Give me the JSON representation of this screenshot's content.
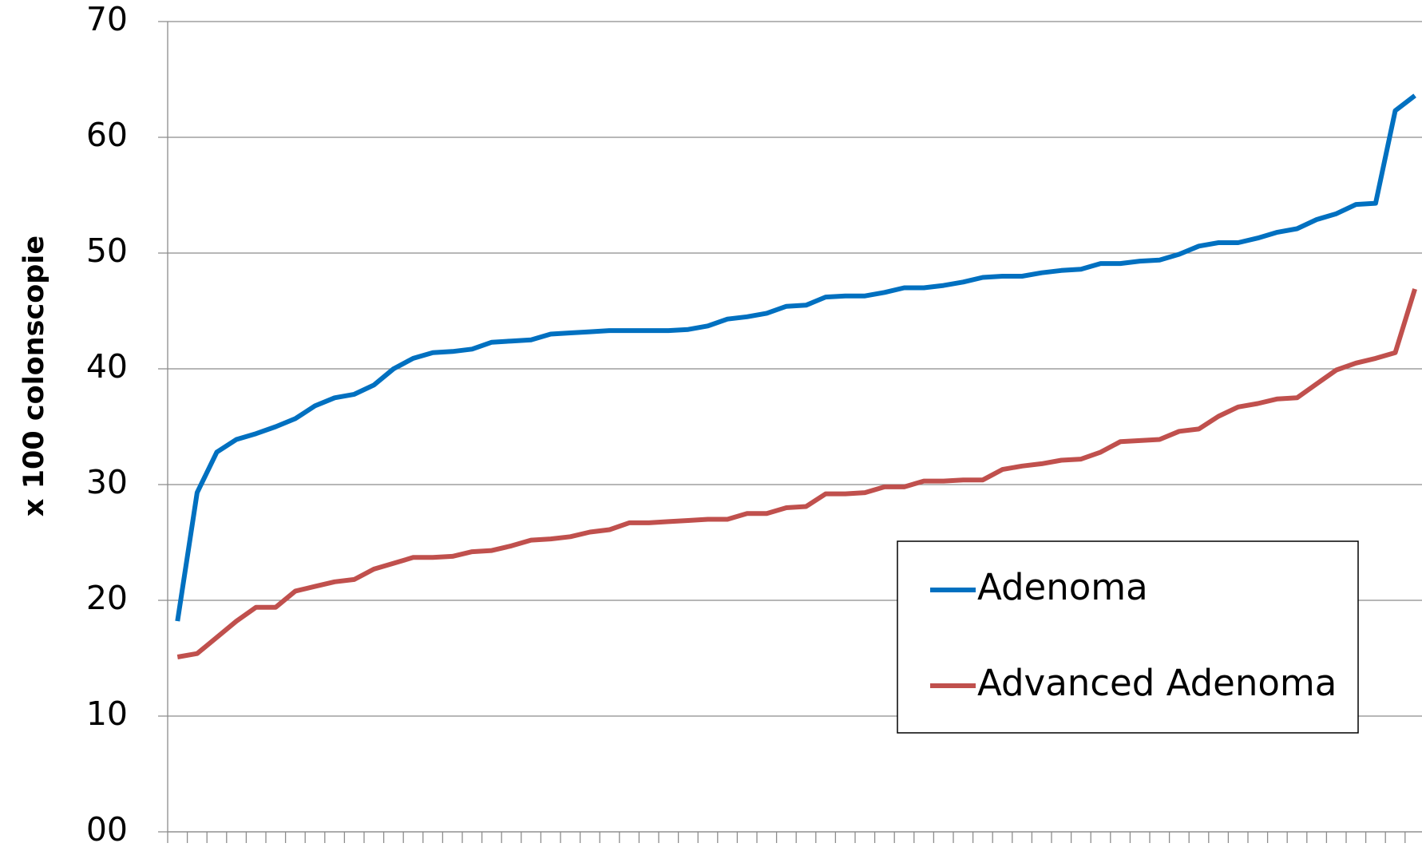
{
  "chart_data": {
    "type": "line",
    "y_label": "x 100 colonscopie",
    "categories": [
      null,
      null,
      null,
      null,
      null,
      null,
      null,
      null,
      null,
      null,
      null,
      null,
      null,
      null,
      null,
      null,
      null,
      null,
      null,
      null,
      null,
      null,
      null,
      null,
      null,
      null,
      null,
      null,
      null,
      null,
      null,
      null,
      null,
      null,
      null,
      null,
      null,
      null,
      null,
      null,
      null,
      null,
      null,
      null,
      null,
      null,
      null,
      null,
      null,
      null,
      null,
      null,
      null,
      null,
      null,
      null,
      null,
      null,
      null,
      null,
      null,
      null,
      null,
      null
    ],
    "series": [
      {
        "name": "Adenoma",
        "color": "#0070c0",
        "values": [
          18.2,
          29.3,
          32.8,
          33.9,
          34.4,
          35.0,
          35.7,
          36.8,
          37.5,
          37.8,
          38.6,
          40.0,
          40.9,
          41.4,
          41.5,
          41.7,
          42.3,
          42.4,
          42.5,
          43.0,
          43.1,
          43.2,
          43.3,
          43.3,
          43.3,
          43.3,
          43.4,
          43.7,
          44.3,
          44.5,
          44.8,
          45.4,
          45.5,
          46.2,
          46.3,
          46.3,
          46.6,
          47.0,
          47.0,
          47.2,
          47.5,
          47.9,
          48.0,
          48.0,
          48.3,
          48.5,
          48.6,
          49.1,
          49.1,
          49.3,
          49.4,
          49.9,
          50.6,
          50.9,
          50.9,
          51.3,
          51.8,
          52.1,
          52.9,
          53.4,
          54.2,
          54.3,
          62.3,
          63.6
        ]
      },
      {
        "name": "Advanced Adenoma",
        "color": "#c0504d",
        "values": [
          15.1,
          15.4,
          16.8,
          18.2,
          19.4,
          19.4,
          20.8,
          21.2,
          21.6,
          21.8,
          22.7,
          23.2,
          23.7,
          23.7,
          23.8,
          24.2,
          24.3,
          24.7,
          25.2,
          25.3,
          25.5,
          25.9,
          26.1,
          26.7,
          26.7,
          26.8,
          26.9,
          27.0,
          27.0,
          27.5,
          27.5,
          28.0,
          28.1,
          29.2,
          29.2,
          29.3,
          29.8,
          29.8,
          30.3,
          30.3,
          30.4,
          30.4,
          31.3,
          31.6,
          31.8,
          32.1,
          32.2,
          32.8,
          33.7,
          33.8,
          33.9,
          34.6,
          34.8,
          35.9,
          36.7,
          37.0,
          37.4,
          37.5,
          38.7,
          39.9,
          40.5,
          40.9,
          41.4,
          46.9
        ]
      }
    ],
    "ylim": [
      0,
      70
    ],
    "yticks": [
      {
        "value": 0,
        "label": "00"
      },
      10,
      20,
      30,
      40,
      50,
      60,
      70
    ],
    "grid": true
  }
}
